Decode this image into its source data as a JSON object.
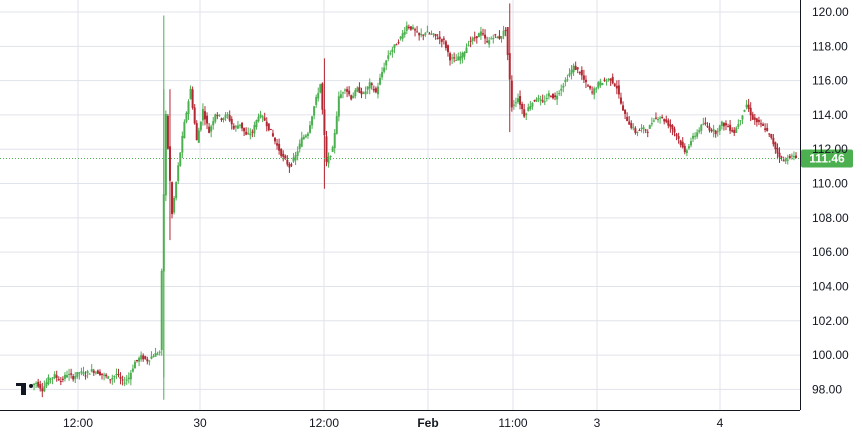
{
  "chart_data": {
    "type": "candlestick",
    "title": "",
    "xlabel": "",
    "ylabel": "",
    "ylim": [
      96.8,
      120.7
    ],
    "y_ticks": [
      "98.00",
      "100.00",
      "102.00",
      "104.00",
      "106.00",
      "108.00",
      "110.00",
      "112.00",
      "114.00",
      "116.00",
      "118.00",
      "120.00"
    ],
    "x_ticks": [
      {
        "label": "12:00",
        "bold": false
      },
      {
        "label": "30",
        "bold": false
      },
      {
        "label": "12:00",
        "bold": false
      },
      {
        "label": "Feb",
        "bold": true
      },
      {
        "label": "11:00",
        "bold": false
      },
      {
        "label": "3",
        "bold": false
      },
      {
        "label": "4",
        "bold": false
      }
    ],
    "last_price": 111.46,
    "last_price_label": "111.46",
    "grid": true,
    "colors": {
      "up": "#4caf50",
      "down": "#b22833",
      "grid": "#e0e3eb",
      "price_line": "#4caf50",
      "axis": "#131722"
    },
    "logo": "tv-logo-icon",
    "series": [
      {
        "name": "",
        "points": [
          [
            98.2,
            98.4
          ],
          [
            98.4,
            98.0
          ],
          [
            98.0,
            98.6
          ],
          [
            98.6,
            98.8
          ],
          [
            98.8,
            98.5
          ],
          [
            98.5,
            98.9
          ],
          [
            98.9,
            98.7
          ],
          [
            98.7,
            99.0
          ],
          [
            99.0,
            98.9
          ],
          [
            98.9,
            99.1
          ],
          [
            99.1,
            99.0
          ],
          [
            99.0,
            98.8
          ],
          [
            98.8,
            98.6
          ],
          [
            98.6,
            98.9
          ],
          [
            98.9,
            98.4
          ],
          [
            98.4,
            98.7
          ],
          [
            98.7,
            99.6
          ],
          [
            99.6,
            99.9
          ],
          [
            99.9,
            99.7
          ],
          [
            99.7,
            100.0
          ],
          [
            100.0,
            100.2
          ],
          [
            100.2,
            114.0
          ],
          [
            114.0,
            108.2
          ],
          [
            108.2,
            111.0
          ],
          [
            111.0,
            113.5
          ],
          [
            113.5,
            115.5
          ],
          [
            115.5,
            112.5
          ],
          [
            112.5,
            114.3
          ],
          [
            114.3,
            113.0
          ],
          [
            113.0,
            114.1
          ],
          [
            114.1,
            113.8
          ],
          [
            113.8,
            114.0
          ],
          [
            114.0,
            113.2
          ],
          [
            113.2,
            113.5
          ],
          [
            113.5,
            112.8
          ],
          [
            112.8,
            113.0
          ],
          [
            113.0,
            114.0
          ],
          [
            114.0,
            113.7
          ],
          [
            113.7,
            113.0
          ],
          [
            113.0,
            112.2
          ],
          [
            112.2,
            111.5
          ],
          [
            111.5,
            111.0
          ],
          [
            111.0,
            111.6
          ],
          [
            111.6,
            112.6
          ],
          [
            112.6,
            113.0
          ],
          [
            113.0,
            114.5
          ],
          [
            114.5,
            115.8
          ],
          [
            115.8,
            111.2
          ],
          [
            111.2,
            112.0
          ],
          [
            112.0,
            115.0
          ],
          [
            115.0,
            115.6
          ],
          [
            115.6,
            115.0
          ],
          [
            115.0,
            115.5
          ],
          [
            115.5,
            115.2
          ],
          [
            115.2,
            115.8
          ],
          [
            115.8,
            115.3
          ],
          [
            115.3,
            116.5
          ],
          [
            116.5,
            117.5
          ],
          [
            117.5,
            118.0
          ],
          [
            118.0,
            118.5
          ],
          [
            118.5,
            119.2
          ],
          [
            119.2,
            119.0
          ],
          [
            119.0,
            118.6
          ],
          [
            118.6,
            118.8
          ],
          [
            118.8,
            118.7
          ],
          [
            118.7,
            118.5
          ],
          [
            118.5,
            118.3
          ],
          [
            118.3,
            117.3
          ],
          [
            117.3,
            117.2
          ],
          [
            117.2,
            117.5
          ],
          [
            117.5,
            118.2
          ],
          [
            118.2,
            118.5
          ],
          [
            118.5,
            118.8
          ],
          [
            118.8,
            118.2
          ],
          [
            118.2,
            118.6
          ],
          [
            118.6,
            118.5
          ],
          [
            118.5,
            119.0
          ],
          [
            119.0,
            114.5
          ],
          [
            114.5,
            115.0
          ],
          [
            115.0,
            114.0
          ],
          [
            114.0,
            114.6
          ],
          [
            114.6,
            115.0
          ],
          [
            115.0,
            114.7
          ],
          [
            114.7,
            115.2
          ],
          [
            115.2,
            115.0
          ],
          [
            115.0,
            115.6
          ],
          [
            115.6,
            116.2
          ],
          [
            116.2,
            116.8
          ],
          [
            116.8,
            116.5
          ],
          [
            116.5,
            115.8
          ],
          [
            115.8,
            115.3
          ],
          [
            115.3,
            115.8
          ],
          [
            115.8,
            116.0
          ],
          [
            116.0,
            116.1
          ],
          [
            116.1,
            115.6
          ],
          [
            115.6,
            114.2
          ],
          [
            114.2,
            113.5
          ],
          [
            113.5,
            113.0
          ],
          [
            113.0,
            113.2
          ],
          [
            113.2,
            113.1
          ],
          [
            113.1,
            113.8
          ],
          [
            113.8,
            113.9
          ],
          [
            113.9,
            113.6
          ],
          [
            113.6,
            113.2
          ],
          [
            113.2,
            112.6
          ],
          [
            112.6,
            111.8
          ],
          [
            111.8,
            112.5
          ],
          [
            112.5,
            113.0
          ],
          [
            113.0,
            113.5
          ],
          [
            113.5,
            113.2
          ],
          [
            113.2,
            113.0
          ],
          [
            113.0,
            113.5
          ],
          [
            113.5,
            113.3
          ],
          [
            113.3,
            113.0
          ],
          [
            113.0,
            113.8
          ],
          [
            113.8,
            114.6
          ],
          [
            114.6,
            113.8
          ],
          [
            113.8,
            113.5
          ],
          [
            113.5,
            113.2
          ],
          [
            113.2,
            112.6
          ],
          [
            112.6,
            111.8
          ],
          [
            111.8,
            111.3
          ],
          [
            111.3,
            111.6
          ],
          [
            111.6,
            111.5
          ]
        ]
      }
    ]
  }
}
